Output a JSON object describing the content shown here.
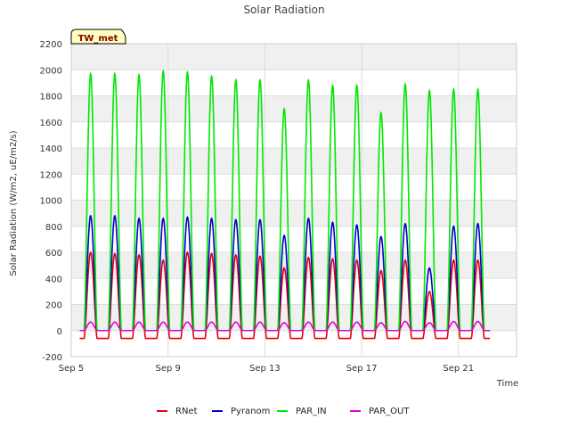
{
  "chart_data": {
    "type": "line",
    "title": "Solar Radiation",
    "xlabel": "Time",
    "ylabel": "Solar Radiation (W/m2, uE/m2/s)",
    "station_label": "TW_met",
    "xlim": [
      5,
      23.4
    ],
    "ylim": [
      -200,
      2200
    ],
    "y_ticks": [
      -200,
      0,
      200,
      400,
      600,
      800,
      1000,
      1200,
      1400,
      1600,
      1800,
      2000,
      2200
    ],
    "x_ticks": [
      {
        "value": 5,
        "label": "Sep 5"
      },
      {
        "value": 9,
        "label": "Sep 9"
      },
      {
        "value": 13,
        "label": "Sep 13"
      },
      {
        "value": 17,
        "label": "Sep 17"
      },
      {
        "value": 21,
        "label": "Sep 21"
      }
    ],
    "grid": true,
    "legend_position": "bottom",
    "day_centers": [
      5.8,
      6.8,
      7.8,
      8.8,
      9.8,
      10.8,
      11.8,
      12.8,
      13.8,
      14.8,
      15.8,
      16.8,
      17.8,
      18.8,
      19.8,
      20.8,
      21.8
    ],
    "series": [
      {
        "name": "RNet",
        "color": "#e8000b",
        "night_value": -60,
        "daily_peaks": [
          600,
          590,
          580,
          540,
          600,
          590,
          580,
          570,
          480,
          560,
          550,
          540,
          460,
          540,
          300,
          540,
          540
        ]
      },
      {
        "name": "Pyranom",
        "color": "#0000d0",
        "night_value": 0,
        "daily_peaks": [
          880,
          880,
          860,
          860,
          870,
          860,
          850,
          850,
          730,
          860,
          830,
          810,
          720,
          820,
          480,
          800,
          820
        ]
      },
      {
        "name": "PAR_IN",
        "color": "#00e800",
        "night_value": 0,
        "daily_peaks": [
          1970,
          1970,
          1960,
          1990,
          1980,
          1950,
          1920,
          1920,
          1700,
          1920,
          1880,
          1880,
          1670,
          1890,
          1840,
          1850,
          1850
        ]
      },
      {
        "name": "PAR_OUT",
        "color": "#e000e0",
        "night_value": 0,
        "daily_peaks": [
          65,
          65,
          65,
          65,
          65,
          65,
          65,
          65,
          60,
          65,
          65,
          65,
          60,
          70,
          60,
          70,
          70
        ]
      }
    ]
  }
}
